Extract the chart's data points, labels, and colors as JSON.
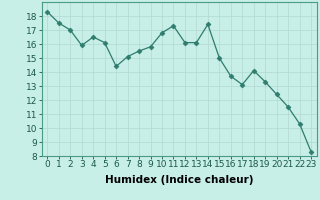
{
  "x": [
    0,
    1,
    2,
    3,
    4,
    5,
    6,
    7,
    8,
    9,
    10,
    11,
    12,
    13,
    14,
    15,
    16,
    17,
    18,
    19,
    20,
    21,
    22,
    23
  ],
  "y": [
    18.3,
    17.5,
    17.0,
    15.9,
    16.5,
    16.1,
    14.4,
    15.1,
    15.5,
    15.8,
    16.8,
    17.3,
    16.1,
    16.1,
    17.4,
    15.0,
    13.7,
    13.1,
    14.1,
    13.3,
    12.4,
    11.5,
    10.3,
    8.3
  ],
  "line_color": "#2e7d6e",
  "marker": "D",
  "marker_size": 2.5,
  "bg_color": "#c8eee8",
  "grid_color": "#b0d8d0",
  "xlabel": "Humidex (Indice chaleur)",
  "ylim": [
    8,
    19
  ],
  "xlim": [
    -0.5,
    23.5
  ],
  "yticks": [
    8,
    9,
    10,
    11,
    12,
    13,
    14,
    15,
    16,
    17,
    18
  ],
  "xticks": [
    0,
    1,
    2,
    3,
    4,
    5,
    6,
    7,
    8,
    9,
    10,
    11,
    12,
    13,
    14,
    15,
    16,
    17,
    18,
    19,
    20,
    21,
    22,
    23
  ],
  "xlabel_fontsize": 7.5,
  "tick_fontsize": 6.5
}
